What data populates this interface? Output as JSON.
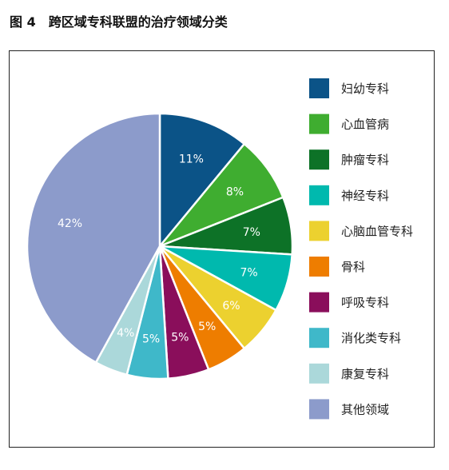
{
  "figure_title": "图 4　跨区域专科联盟的治疗领域分类",
  "chart_data": {
    "type": "pie",
    "title": "图 4　跨区域专科联盟的治疗领域分类",
    "categories": [
      "妇幼专科",
      "心血管病",
      "肿瘤专科",
      "神经专科",
      "心脑血管专科",
      "骨科",
      "呼吸专科",
      "消化类专科",
      "康复专科",
      "其他领域"
    ],
    "values": [
      11,
      8,
      7,
      7,
      6,
      5,
      5,
      5,
      4,
      42
    ],
    "value_labels": [
      "11%",
      "8%",
      "7%",
      "7%",
      "6%",
      "5%",
      "5%",
      "5%",
      "4%",
      "42%"
    ],
    "colors": [
      "#0b5387",
      "#3fad30",
      "#0d7227",
      "#00b9ae",
      "#ecd12f",
      "#ee7d00",
      "#8a0e5b",
      "#3fb8c9",
      "#abd8da",
      "#8c9bcb"
    ],
    "start_angle_deg": 0,
    "direction": "clockwise",
    "legend_position": "right"
  }
}
